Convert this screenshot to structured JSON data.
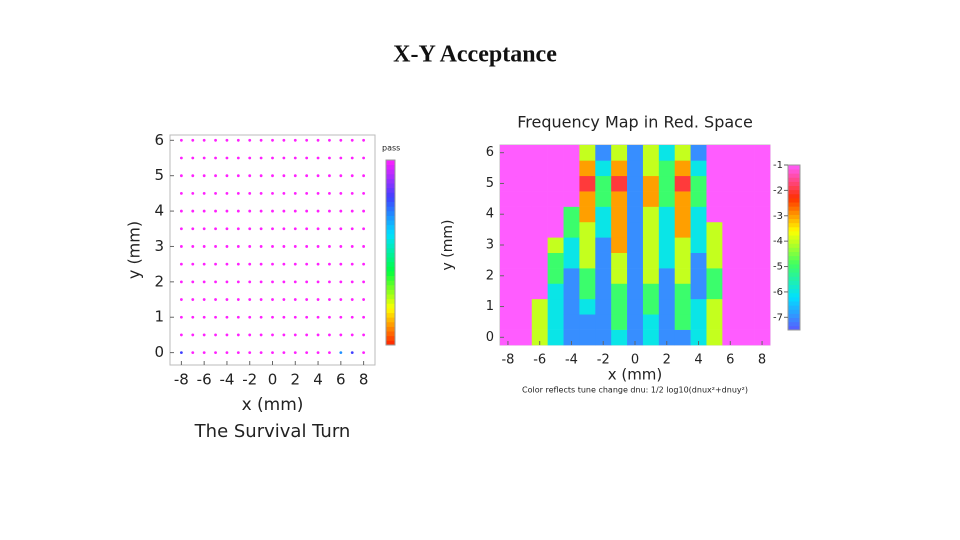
{
  "title": "X-Y Acceptance",
  "chart_data": [
    {
      "type": "heatmap",
      "marker": "dot",
      "title": "The Survival Turn",
      "xlabel": "x (mm)",
      "ylabel": "y (mm)",
      "colorbar_label": "pass",
      "x": [
        -8,
        -7,
        -6,
        -5,
        -4,
        -3,
        -2,
        -1,
        0,
        1,
        2,
        3,
        4,
        5,
        6,
        7,
        8
      ],
      "y": [
        0,
        0.5,
        1,
        1.5,
        2,
        2.5,
        3,
        3.5,
        4,
        4.5,
        5,
        5.5,
        6
      ],
      "values": [
        [
          800,
          1000,
          1000,
          1000,
          1000,
          1000,
          1000,
          1000,
          1000,
          1000,
          1000,
          1000,
          1000,
          1000,
          700,
          800,
          1000
        ],
        [
          1000,
          1000,
          1000,
          1000,
          1000,
          1000,
          1000,
          1000,
          1000,
          1000,
          1000,
          1000,
          1000,
          1000,
          1000,
          1000,
          1000
        ],
        [
          1000,
          1000,
          1000,
          1000,
          1000,
          1000,
          1000,
          1000,
          1000,
          1000,
          1000,
          1000,
          1000,
          1000,
          1000,
          1000,
          1000
        ],
        [
          1000,
          1000,
          1000,
          1000,
          1000,
          1000,
          1000,
          1000,
          1000,
          1000,
          1000,
          1000,
          1000,
          1000,
          1000,
          1000,
          1000
        ],
        [
          1000,
          1000,
          1000,
          1000,
          1000,
          1000,
          1000,
          1000,
          1000,
          1000,
          1000,
          1000,
          1000,
          1000,
          1000,
          1000,
          1000
        ],
        [
          1000,
          1000,
          1000,
          1000,
          1000,
          1000,
          1000,
          1000,
          1000,
          1000,
          1000,
          1000,
          1000,
          1000,
          1000,
          1000,
          1000
        ],
        [
          1000,
          1000,
          1000,
          1000,
          1000,
          1000,
          1000,
          1000,
          1000,
          1000,
          1000,
          1000,
          1000,
          1000,
          1000,
          1000,
          1000
        ],
        [
          1000,
          1000,
          1000,
          1000,
          1000,
          1000,
          1000,
          1000,
          1000,
          1000,
          1000,
          1000,
          1000,
          1000,
          1000,
          1000,
          1000
        ],
        [
          1000,
          1000,
          1000,
          1000,
          1000,
          1000,
          1000,
          1000,
          1000,
          1000,
          1000,
          1000,
          1000,
          1000,
          1000,
          1000,
          1000
        ],
        [
          1000,
          1000,
          1000,
          1000,
          1000,
          1000,
          1000,
          1000,
          1000,
          1000,
          1000,
          1000,
          1000,
          1000,
          1000,
          1000,
          1000
        ],
        [
          1000,
          1000,
          1000,
          1000,
          1000,
          1000,
          1000,
          1000,
          1000,
          1000,
          1000,
          1000,
          1000,
          1000,
          1000,
          1000,
          1000
        ],
        [
          1000,
          1000,
          1000,
          1000,
          1000,
          1000,
          1000,
          1000,
          1000,
          1000,
          1000,
          1000,
          1000,
          1000,
          1000,
          1000,
          1000
        ],
        [
          1000,
          1000,
          1000,
          1000,
          1000,
          1000,
          1000,
          1000,
          1000,
          1000,
          1000,
          1000,
          1000,
          1000,
          1000,
          1000,
          1000
        ]
      ],
      "zlim": [
        0,
        1000
      ],
      "colormap": [
        "#ff2000",
        "#ffff00",
        "#00ff40",
        "#00e0ff",
        "#4040ff",
        "#ff20ff"
      ],
      "xlim": [
        -9,
        9
      ],
      "ylim": [
        -0.35,
        6.15
      ],
      "xticks": [
        -8,
        -6,
        -4,
        -2,
        0,
        2,
        4,
        6,
        8
      ],
      "yticks": [
        0,
        1,
        2,
        3,
        4,
        5,
        6
      ]
    },
    {
      "type": "heatmap",
      "marker": "cell",
      "title": "Frequency Map in Red. Space",
      "xlabel": "x (mm)",
      "ylabel": "y (mm)",
      "caption": "Color reflects tune change dnu: 1/2 log10(dnux²+dnuy²)",
      "x": [
        -8,
        -7,
        -6,
        -5,
        -4,
        -3,
        -2,
        -1,
        0,
        1,
        2,
        3,
        4,
        5,
        6,
        7,
        8
      ],
      "y": [
        0,
        0.5,
        1,
        1.5,
        2,
        2.5,
        3,
        3.5,
        4,
        4.5,
        5,
        5.5,
        6
      ],
      "values": [
        [
          -1,
          -1,
          -4,
          -6,
          -7,
          -7,
          -7,
          -6,
          -7,
          -6,
          -7,
          -7,
          -6,
          -4,
          -1,
          -1,
          -1
        ],
        [
          -1,
          -1,
          -4,
          -6,
          -7,
          -7,
          -7,
          -5,
          -7,
          -6,
          -7,
          -5,
          -6,
          -4,
          -1,
          -1,
          -1
        ],
        [
          -1,
          -1,
          -4,
          -6,
          -7,
          -6,
          -7,
          -5,
          -7,
          -5,
          -7,
          -5,
          -6,
          -4,
          -1,
          -1,
          -1
        ],
        [
          -1,
          -1,
          -1,
          -6,
          -7,
          -5,
          -7,
          -5,
          -7,
          -5,
          -7,
          -5,
          -7,
          -5,
          -1,
          -1,
          -1
        ],
        [
          -1,
          -1,
          -1,
          -5,
          -7,
          -5,
          -7,
          -4,
          -7,
          -4,
          -7,
          -4,
          -7,
          -5,
          -1,
          -1,
          -1
        ],
        [
          -1,
          -1,
          -1,
          -5,
          -6,
          -4,
          -7,
          -4,
          -7,
          -4,
          -6,
          -4,
          -7,
          -4,
          -1,
          -1,
          -1
        ],
        [
          -1,
          -1,
          -1,
          -4,
          -6,
          -4,
          -7,
          -3,
          -7,
          -4,
          -6,
          -4,
          -6,
          -4,
          -1,
          -1,
          -1
        ],
        [
          -1,
          -1,
          -1,
          -1,
          -5,
          -4,
          -6,
          -3,
          -7,
          -4,
          -6,
          -3,
          -6,
          -4,
          -1,
          -1,
          -1
        ],
        [
          -1,
          -1,
          -1,
          -1,
          -5,
          -3,
          -6,
          -3,
          -7,
          -4,
          -6,
          -3,
          -6,
          -1,
          -1,
          -1,
          -1
        ],
        [
          -1,
          -1,
          -1,
          -1,
          -1,
          -3,
          -5,
          -3,
          -7,
          -3,
          -5,
          -3,
          -5,
          -1,
          -1,
          -1,
          -1
        ],
        [
          -1,
          -1,
          -1,
          -1,
          -1,
          -2,
          -5,
          -2,
          -7,
          -3,
          -5,
          -2,
          -5,
          -1,
          -1,
          -1,
          -1
        ],
        [
          -1,
          -1,
          -1,
          -1,
          -1,
          -3,
          -6,
          -3,
          -7,
          -4,
          -5,
          -3,
          -6,
          -1,
          -1,
          -1,
          -1
        ],
        [
          -1,
          -1,
          -1,
          -1,
          -1,
          -4,
          -7,
          -4,
          -7,
          -4,
          -6,
          -4,
          -7,
          -1,
          -1,
          -1,
          -1
        ]
      ],
      "zlim": [
        -7.5,
        -1
      ],
      "zticks": [
        -1,
        -2,
        -3,
        -4,
        -5,
        -6,
        -7
      ],
      "colormap": [
        "#5a5aff",
        "#00e0ff",
        "#40ff60",
        "#ffff00",
        "#ff3000",
        "#ff5cff"
      ],
      "xlim": [
        -8.5,
        8.5
      ],
      "ylim": [
        -0.25,
        6.25
      ],
      "xticks": [
        -8,
        -6,
        -4,
        -2,
        0,
        2,
        4,
        6,
        8
      ],
      "yticks": [
        0,
        1,
        2,
        3,
        4,
        5,
        6
      ]
    }
  ]
}
